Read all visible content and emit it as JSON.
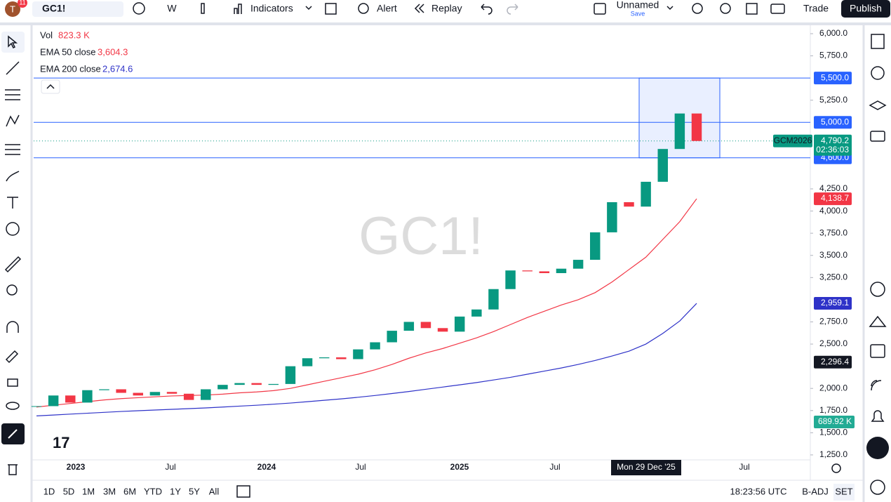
{
  "toolbar": {
    "avatar": "T",
    "badge": "11",
    "symbol": "GC1!",
    "interval": "W",
    "indicators": "Indicators",
    "alert": "Alert",
    "replay": "Replay",
    "layout_name": "Unnamed",
    "save": "Save",
    "trade": "Trade",
    "publish": "Publish"
  },
  "legend": {
    "vol_label": "Vol",
    "vol_value": "823.3 K",
    "ema50_label": "EMA 50 close",
    "ema50_value": "3,604.3",
    "ema200_label": "EMA 200 close",
    "ema200_value": "2,674.6"
  },
  "watermark": "GC1!",
  "chart_data": {
    "type": "candlestick",
    "close": [
      1800,
      1920,
      1840,
      1980,
      1990,
      1950,
      1920,
      1960,
      1940,
      1870,
      1990,
      2040,
      2060,
      2040,
      2050,
      2250,
      2340,
      2350,
      2330,
      2440,
      2520,
      2650,
      2750,
      2680,
      2640,
      2810,
      2890,
      3120,
      3330,
      3320,
      3300,
      3350,
      3450,
      3760,
      4100,
      4050,
      4330,
      4700,
      5100,
      4790.2
    ],
    "up_color": "#089981",
    "down_color": "#f23645",
    "series": [
      {
        "name": "EMA 50 close",
        "color": "#f23645",
        "values": [
          1790,
          1810,
          1830,
          1850,
          1870,
          1885,
          1895,
          1905,
          1915,
          1920,
          1925,
          1935,
          1950,
          1960,
          1975,
          2000,
          2040,
          2080,
          2120,
          2160,
          2210,
          2270,
          2340,
          2400,
          2450,
          2510,
          2570,
          2640,
          2720,
          2800,
          2870,
          2940,
          3000,
          3080,
          3200,
          3340,
          3480,
          3680,
          3880,
          4138.7
        ]
      },
      {
        "name": "EMA 200 close",
        "color": "#2e32c8",
        "values": [
          1690,
          1700,
          1710,
          1720,
          1730,
          1740,
          1748,
          1756,
          1764,
          1772,
          1780,
          1790,
          1800,
          1810,
          1822,
          1835,
          1850,
          1866,
          1882,
          1900,
          1920,
          1942,
          1965,
          1990,
          2015,
          2040,
          2066,
          2095,
          2125,
          2160,
          2195,
          2230,
          2270,
          2315,
          2365,
          2420,
          2500,
          2620,
          2760,
          2959.1
        ]
      }
    ],
    "ylim": [
      1194,
      6079
    ],
    "yticks": [
      {
        "value": 6000,
        "label": "6,000.0"
      },
      {
        "value": 5750,
        "label": "5,750.0"
      },
      {
        "value": 5250,
        "label": "5,250.0"
      },
      {
        "value": 4250,
        "label": "4,250.0"
      },
      {
        "value": 4000,
        "label": "4,000.0"
      },
      {
        "value": 3750,
        "label": "3,750.0"
      },
      {
        "value": 3500,
        "label": "3,500.0"
      },
      {
        "value": 3250,
        "label": "3,250.0"
      },
      {
        "value": 2750,
        "label": "2,750.0"
      },
      {
        "value": 2500,
        "label": "2,500.0"
      },
      {
        "value": 2000,
        "label": "2,000.0"
      },
      {
        "value": 1750,
        "label": "1,750.0"
      },
      {
        "value": 1500,
        "label": "1,500.0"
      },
      {
        "value": 1250,
        "label": "1,250.0"
      }
    ],
    "levels": [
      {
        "value": 5500,
        "label": "5,500.0"
      },
      {
        "value": 5000,
        "label": "5,000.0"
      },
      {
        "value": 4600,
        "label": "4,600.0"
      }
    ],
    "zone": {
      "from": 4600,
      "to": 5500
    },
    "markers": [
      {
        "value": 4138.7,
        "label": "4,138.7",
        "color": "#f23645"
      },
      {
        "value": 2959.1,
        "label": "2,959.1",
        "color": "#2e32c8"
      },
      {
        "value": 2296.4,
        "label": "2,296.4",
        "color": "#131722"
      }
    ],
    "last": {
      "symbol": "GCM2026",
      "value": 4790.2,
      "label": "4,790.2",
      "countdown": "02:36:03"
    },
    "volume_marker": "689.92 K",
    "xlabels": [
      "2023",
      "Jul",
      "2024",
      "Jul",
      "2025",
      "Jul",
      "Mon 29 Dec '25",
      "Jul"
    ]
  },
  "bottom": {
    "ranges": [
      "1D",
      "5D",
      "1M",
      "3M",
      "6M",
      "YTD",
      "1Y",
      "5Y",
      "All"
    ],
    "time": "18:23:56 UTC",
    "adj": "B-ADJ",
    "session": "SET"
  }
}
